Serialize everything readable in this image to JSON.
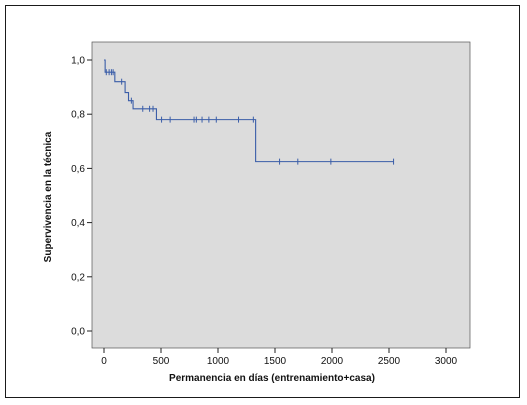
{
  "chart_data": {
    "type": "line",
    "xlabel": "Permanencia en días (entrenamiento+casa)",
    "ylabel": "Supervivencia en la técnica",
    "xlim": [
      0,
      3000
    ],
    "ylim": [
      0,
      1
    ],
    "x_ticks": [
      0,
      500,
      1000,
      1500,
      2000,
      2500,
      3000
    ],
    "y_ticks": [
      0.0,
      0.2,
      0.4,
      0.6,
      0.8,
      1.0
    ],
    "y_tick_labels": [
      "0,0",
      "0,2",
      "0,4",
      "0,6",
      "0,8",
      "1,0"
    ],
    "grid": false,
    "plot_background": "#dcdcdc",
    "line_color": "#3a5da8",
    "series": [
      {
        "step_points": [
          {
            "x": 0,
            "y": 1.0
          },
          {
            "x": 10,
            "y": 0.955
          },
          {
            "x": 95,
            "y": 0.92
          },
          {
            "x": 185,
            "y": 0.88
          },
          {
            "x": 215,
            "y": 0.85
          },
          {
            "x": 255,
            "y": 0.82
          },
          {
            "x": 460,
            "y": 0.78
          },
          {
            "x": 1330,
            "y": 0.625
          },
          {
            "x": 2540,
            "y": 0.625
          }
        ],
        "censored": [
          {
            "x": 20,
            "y": 0.955
          },
          {
            "x": 45,
            "y": 0.955
          },
          {
            "x": 65,
            "y": 0.955
          },
          {
            "x": 80,
            "y": 0.955
          },
          {
            "x": 155,
            "y": 0.92
          },
          {
            "x": 240,
            "y": 0.85
          },
          {
            "x": 340,
            "y": 0.82
          },
          {
            "x": 400,
            "y": 0.82
          },
          {
            "x": 430,
            "y": 0.82
          },
          {
            "x": 505,
            "y": 0.78
          },
          {
            "x": 580,
            "y": 0.78
          },
          {
            "x": 790,
            "y": 0.78
          },
          {
            "x": 810,
            "y": 0.78
          },
          {
            "x": 860,
            "y": 0.78
          },
          {
            "x": 920,
            "y": 0.78
          },
          {
            "x": 985,
            "y": 0.78
          },
          {
            "x": 1180,
            "y": 0.78
          },
          {
            "x": 1310,
            "y": 0.78
          },
          {
            "x": 1540,
            "y": 0.625
          },
          {
            "x": 1700,
            "y": 0.625
          },
          {
            "x": 1990,
            "y": 0.625
          },
          {
            "x": 2540,
            "y": 0.625
          }
        ]
      }
    ]
  }
}
